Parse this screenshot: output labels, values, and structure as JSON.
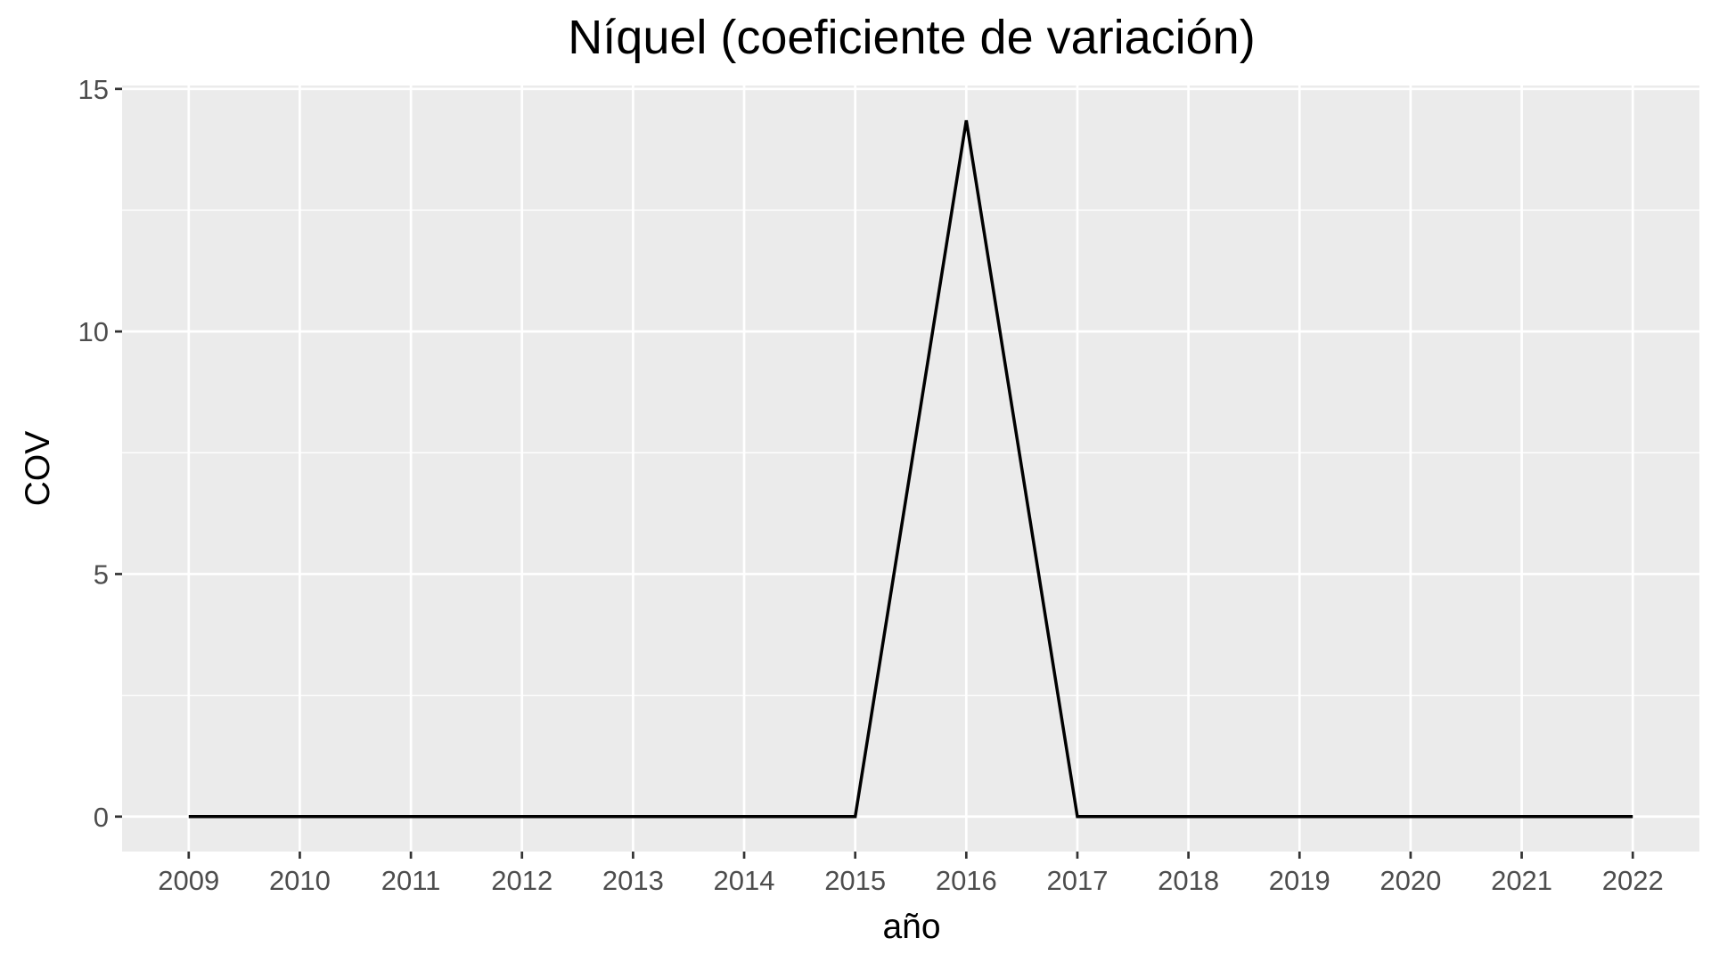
{
  "chart_data": {
    "type": "line",
    "title": "Níquel (coeficiente de variación)",
    "xlabel": "año",
    "ylabel": "COV",
    "x": [
      2009,
      2010,
      2011,
      2012,
      2013,
      2014,
      2015,
      2016,
      2017,
      2018,
      2019,
      2020,
      2021,
      2022
    ],
    "x_tick_labels": [
      "2009",
      "2010",
      "2011",
      "2012",
      "2013",
      "2014",
      "2015",
      "2016",
      "2017",
      "2018",
      "2019",
      "2020",
      "2021",
      "2022"
    ],
    "series": [
      {
        "values": [
          0,
          0,
          0,
          0,
          0,
          0,
          0,
          14.35,
          0,
          0,
          0,
          0,
          0,
          0
        ],
        "color": "#000000"
      }
    ],
    "y_ticks": [
      0,
      5,
      10,
      15
    ],
    "y_tick_labels": [
      "0",
      "5",
      "10",
      "15"
    ],
    "xlim": [
      2008.4,
      2022.6
    ],
    "ylim": [
      -0.72,
      15.07
    ],
    "grid": true,
    "panel_background": "#ebebeb",
    "grid_color": "#ffffff"
  }
}
